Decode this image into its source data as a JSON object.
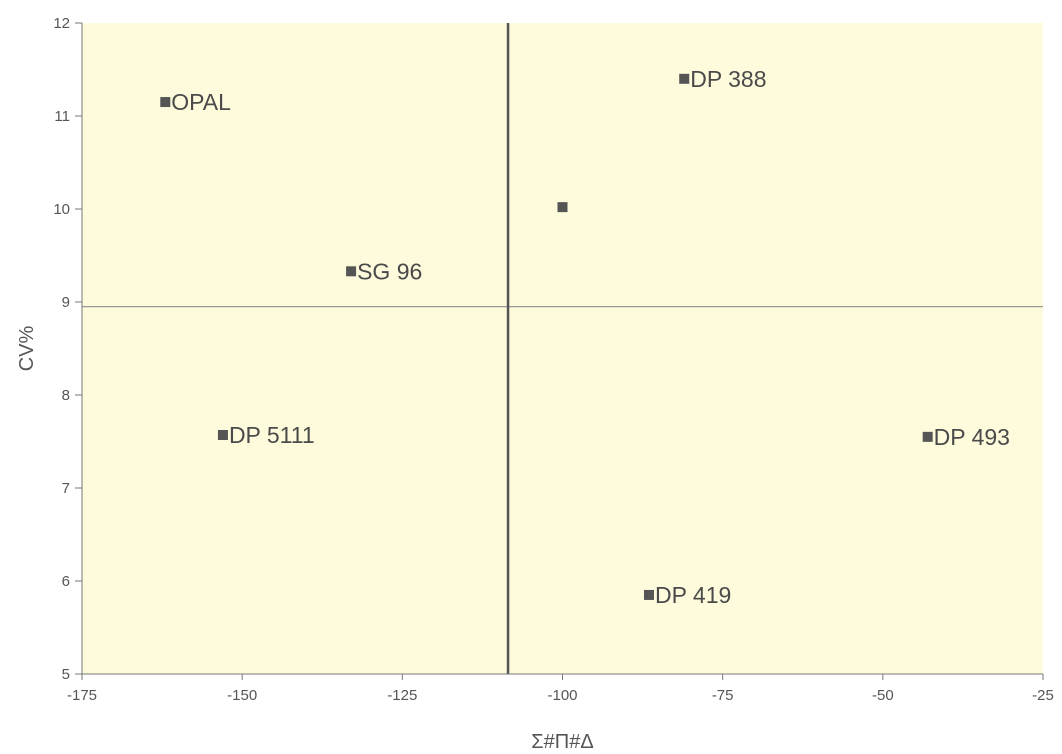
{
  "chart_data": {
    "type": "scatter",
    "title": "",
    "xlabel": "Σ#Π#Δ",
    "ylabel": "CV%",
    "xlim": [
      -175,
      -25
    ],
    "ylim": [
      5,
      12
    ],
    "x_ticks": [
      "-175",
      "-150",
      "-125",
      "-100",
      "-75",
      "-50",
      "-25"
    ],
    "y_ticks": [
      "5",
      "6",
      "7",
      "8",
      "9",
      "10",
      "11",
      "12"
    ],
    "grid": false,
    "reference_lines": {
      "vertical_x": -108.5,
      "horizontal_y": 8.95
    },
    "colors": {
      "plot_background": "#fdfbdc",
      "marker": "#555555",
      "vertical_line": "#555555",
      "horizontal_line": "#999999"
    },
    "points": [
      {
        "label": "OPAL",
        "x": -162,
        "y": 11.15
      },
      {
        "label": "DP 388",
        "x": -81,
        "y": 11.4
      },
      {
        "label": "",
        "x": -100,
        "y": 10.02
      },
      {
        "label": "SG 96",
        "x": -133,
        "y": 9.33
      },
      {
        "label": "DP 5111",
        "x": -153,
        "y": 7.57
      },
      {
        "label": "DP 493",
        "x": -43,
        "y": 7.55
      },
      {
        "label": "DP 419",
        "x": -86.5,
        "y": 5.85
      }
    ]
  }
}
